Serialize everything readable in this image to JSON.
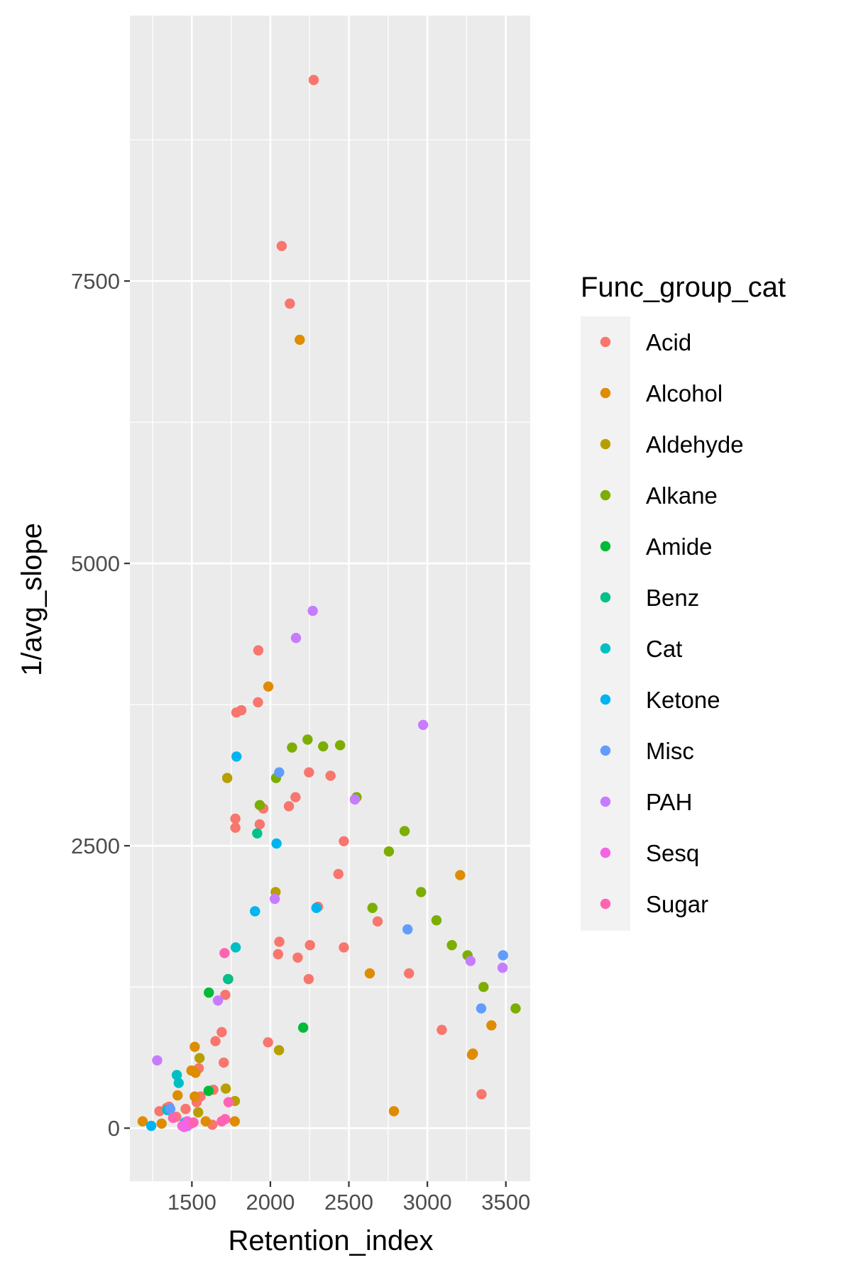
{
  "chart_data": {
    "type": "scatter",
    "xlabel": "Retention_index",
    "ylabel": "1/avg_slope",
    "xlim": [
      1105,
      3655
    ],
    "ylim": [
      -470,
      9850
    ],
    "x_ticks": [
      1500,
      2000,
      2500,
      3000,
      3500
    ],
    "y_ticks": [
      0,
      2500,
      5000,
      7500
    ],
    "x_tick_labels": [
      "1500",
      "2000",
      "2500",
      "3000",
      "3500"
    ],
    "y_tick_labels": [
      "0",
      "2500",
      "5000",
      "7500"
    ],
    "grid": true,
    "panel_background": "#EBEBEB",
    "legend": {
      "title": "Func_group_cat",
      "position": "right"
    },
    "series": [
      {
        "name": "Acid",
        "color": "#F8766D",
        "points": [
          [
            2276,
            9280
          ],
          [
            2072,
            7810
          ],
          [
            2124,
            7300
          ],
          [
            1923,
            4230
          ],
          [
            1921,
            3770
          ],
          [
            1783,
            3680
          ],
          [
            1815,
            3700
          ],
          [
            2246,
            3150
          ],
          [
            2383,
            3120
          ],
          [
            2160,
            2930
          ],
          [
            2118,
            2850
          ],
          [
            1955,
            2830
          ],
          [
            1777,
            2740
          ],
          [
            1932,
            2690
          ],
          [
            1777,
            2660
          ],
          [
            2468,
            2540
          ],
          [
            2433,
            2250
          ],
          [
            2303,
            1960
          ],
          [
            2057,
            1650
          ],
          [
            2252,
            1620
          ],
          [
            2468,
            1600
          ],
          [
            2683,
            1830
          ],
          [
            2049,
            1540
          ],
          [
            2174,
            1510
          ],
          [
            2244,
            1320
          ],
          [
            2883,
            1370
          ],
          [
            1713,
            1180
          ],
          [
            1650,
            770
          ],
          [
            1690,
            850
          ],
          [
            1703,
            580
          ],
          [
            1985,
            760
          ],
          [
            3092,
            870
          ],
          [
            3345,
            300
          ],
          [
            1544,
            530
          ],
          [
            1527,
            510
          ],
          [
            1630,
            30
          ],
          [
            1340,
            180
          ],
          [
            1293,
            150
          ],
          [
            1355,
            190
          ],
          [
            1400,
            100
          ],
          [
            1460,
            170
          ],
          [
            1530,
            230
          ],
          [
            1555,
            280
          ],
          [
            1637,
            340
          ]
        ]
      },
      {
        "name": "Alcohol",
        "color": "#DE8C00",
        "points": [
          [
            1987,
            3910
          ],
          [
            2187,
            6980
          ],
          [
            3209,
            2240
          ],
          [
            2633,
            1370
          ],
          [
            3408,
            910
          ],
          [
            3290,
            660
          ],
          [
            3284,
            650
          ],
          [
            2787,
            150
          ],
          [
            1518,
            720
          ],
          [
            1523,
            490
          ],
          [
            1497,
            510
          ],
          [
            1409,
            290
          ],
          [
            1518,
            280
          ],
          [
            1307,
            40
          ],
          [
            1186,
            60
          ],
          [
            1588,
            60
          ],
          [
            1773,
            60
          ]
        ]
      },
      {
        "name": "Aldehyde",
        "color": "#B79F00",
        "points": [
          [
            1725,
            3100
          ],
          [
            2033,
            2090
          ],
          [
            2055,
            690
          ],
          [
            1549,
            620
          ],
          [
            1716,
            350
          ],
          [
            1774,
            240
          ],
          [
            1540,
            140
          ],
          [
            1732,
            1320
          ]
        ]
      },
      {
        "name": "Alkane",
        "color": "#7CAE00",
        "points": [
          [
            2237,
            3440
          ],
          [
            2138,
            3370
          ],
          [
            2336,
            3380
          ],
          [
            2444,
            3390
          ],
          [
            2036,
            3100
          ],
          [
            1932,
            2860
          ],
          [
            2549,
            2930
          ],
          [
            2855,
            2630
          ],
          [
            2755,
            2450
          ],
          [
            2960,
            2090
          ],
          [
            2650,
            1950
          ],
          [
            3058,
            1840
          ],
          [
            3156,
            1620
          ],
          [
            3256,
            1530
          ],
          [
            3358,
            1250
          ],
          [
            3562,
            1060
          ]
        ]
      },
      {
        "name": "Amide",
        "color": "#00BA38",
        "points": [
          [
            1608,
            1200
          ],
          [
            2209,
            890
          ],
          [
            1606,
            330
          ]
        ]
      },
      {
        "name": "Benz",
        "color": "#00C08B",
        "points": [
          [
            1916,
            2610
          ],
          [
            1730,
            1320
          ]
        ]
      },
      {
        "name": "Cat",
        "color": "#00BFC4",
        "points": [
          [
            1779,
            1600
          ],
          [
            1404,
            470
          ],
          [
            1416,
            400
          ],
          [
            1343,
            160
          ]
        ]
      },
      {
        "name": "Ketone",
        "color": "#00B4EF",
        "points": [
          [
            1784,
            3290
          ],
          [
            2039,
            2520
          ],
          [
            1902,
            1920
          ],
          [
            2293,
            1950
          ],
          [
            1241,
            20
          ],
          [
            1455,
            50
          ]
        ]
      },
      {
        "name": "Misc",
        "color": "#619CFF",
        "points": [
          [
            2056,
            3150
          ],
          [
            2874,
            1760
          ],
          [
            3482,
            1530
          ],
          [
            3343,
            1060
          ],
          [
            1362,
            170
          ],
          [
            1472,
            20
          ]
        ]
      },
      {
        "name": "PAH",
        "color": "#C77CFF",
        "points": [
          [
            2270,
            4580
          ],
          [
            2163,
            4340
          ],
          [
            2538,
            2910
          ],
          [
            2973,
            3570
          ],
          [
            2028,
            2030
          ],
          [
            1666,
            1130
          ],
          [
            3275,
            1480
          ],
          [
            3479,
            1420
          ],
          [
            1279,
            600
          ]
        ]
      },
      {
        "name": "Sesq",
        "color": "#F564E3",
        "points": [
          [
            1439,
            20
          ],
          [
            1460,
            20
          ],
          [
            1478,
            30
          ],
          [
            1495,
            40
          ],
          [
            1450,
            10
          ],
          [
            1470,
            60
          ]
        ]
      },
      {
        "name": "Sugar",
        "color": "#FF64B0",
        "points": [
          [
            1708,
            1550
          ],
          [
            1733,
            230
          ],
          [
            1712,
            80
          ],
          [
            1690,
            60
          ],
          [
            1380,
            90
          ],
          [
            1510,
            50
          ]
        ]
      }
    ]
  }
}
